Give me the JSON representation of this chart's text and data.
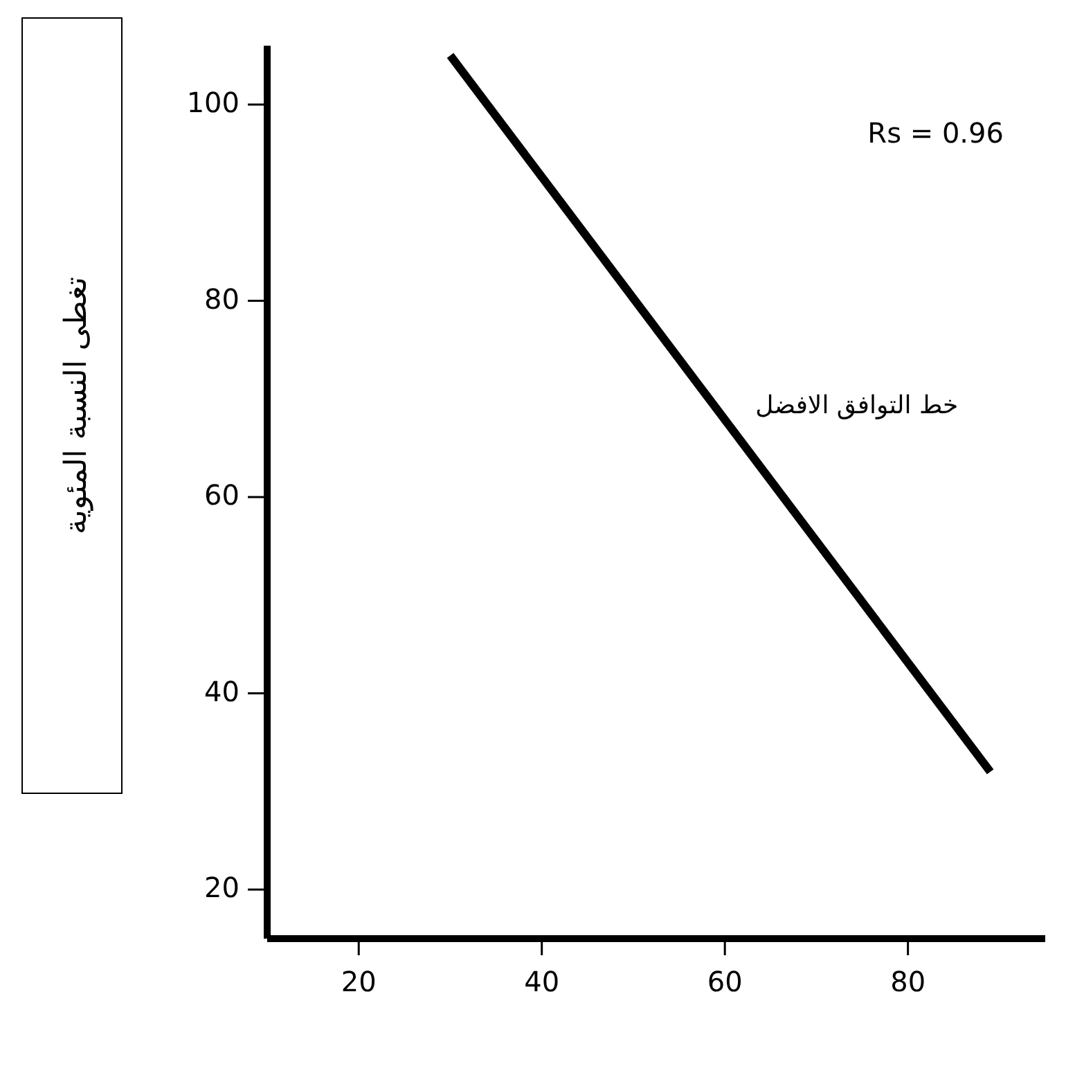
{
  "chart_data": {
    "type": "line",
    "ylabel": "تغطى النسبة المئوية",
    "xlim": [
      10,
      95
    ],
    "xticks": [
      20,
      40,
      60,
      80
    ],
    "ylim": [
      15,
      106
    ],
    "yticks": [
      20,
      40,
      60,
      80,
      100
    ],
    "series": [
      {
        "color": "#000000",
        "x": [
          30,
          89
        ],
        "values": [
          105,
          32
        ]
      }
    ],
    "annotations": [
      "Rs = 0.96",
      {
        "text": "خط التوافق الافضل",
        "x": 60,
        "y": 68
      }
    ],
    "grid": false,
    "marker": "none",
    "line_style": "solid"
  }
}
